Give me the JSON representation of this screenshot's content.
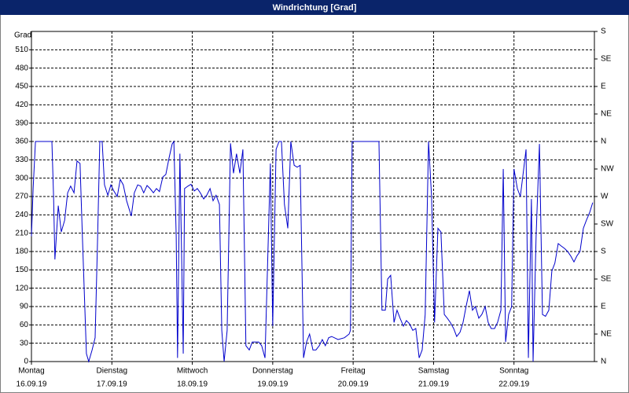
{
  "chart_data": {
    "type": "line",
    "title": "Windrichtung [Grad]",
    "ylabel": "Grad",
    "xlim": [
      0,
      168
    ],
    "xticks": [
      {
        "value": 0,
        "label": "Montag"
      },
      {
        "value": 24,
        "label": "Dienstag"
      },
      {
        "value": 48,
        "label": "Mittwoch"
      },
      {
        "value": 72,
        "label": "Donnerstag"
      },
      {
        "value": 96,
        "label": "Freitag"
      },
      {
        "value": 120,
        "label": "Samstag"
      },
      {
        "value": 144,
        "label": "Sonntag"
      }
    ],
    "xtick_dates": [
      "16.09.19",
      "17.09.19",
      "18.09.19",
      "19.09.19",
      "20.09.19",
      "21.09.19",
      "22.09.19"
    ],
    "ylim": [
      0,
      540
    ],
    "yticks": [
      0,
      30,
      60,
      90,
      120,
      150,
      180,
      210,
      240,
      270,
      300,
      330,
      360,
      390,
      420,
      450,
      480,
      510
    ],
    "y2lim": [
      0,
      540
    ],
    "y2ticks": [
      {
        "value": 0,
        "label": "N"
      },
      {
        "value": 45,
        "label": "NE"
      },
      {
        "value": 90,
        "label": "E"
      },
      {
        "value": 135,
        "label": "SE"
      },
      {
        "value": 180,
        "label": "S"
      },
      {
        "value": 225,
        "label": "SW"
      },
      {
        "value": 270,
        "label": "W"
      },
      {
        "value": 315,
        "label": "NW"
      },
      {
        "value": 360,
        "label": "N"
      },
      {
        "value": 405,
        "label": "NE"
      },
      {
        "value": 450,
        "label": "E"
      },
      {
        "value": 495,
        "label": "SE"
      },
      {
        "value": 540,
        "label": "S"
      }
    ],
    "grid": true,
    "x": [
      0,
      0.5,
      1.2,
      6.1,
      6.6,
      7.0,
      8.0,
      8.9,
      9.9,
      10.8,
      11.7,
      12.7,
      13.6,
      14.5,
      15.2,
      16.4,
      17.1,
      18.1,
      19.0,
      19.7,
      20.4,
      21.1,
      21.8,
      22.8,
      23.7,
      24.6,
      25.6,
      26.5,
      27.4,
      28.4,
      29.8,
      30.7,
      31.7,
      32.6,
      33.5,
      34.5,
      35.4,
      36.4,
      37.3,
      38.2,
      39.2,
      40.1,
      41.1,
      42.0,
      42.5,
      43.2,
      43.6,
      44.3,
      45.3,
      45.7,
      46.7,
      47.6,
      48.6,
      49.5,
      50.4,
      51.4,
      52.3,
      53.3,
      54.2,
      55.1,
      56.1,
      56.8,
      57.5,
      58.4,
      59.4,
      60.3,
      61.2,
      62.2,
      63.1,
      64.0,
      65.0,
      65.9,
      67.8,
      68.7,
      69.7,
      71.3,
      72.0,
      73.0,
      73.9,
      74.6,
      75.5,
      76.5,
      77.4,
      78.4,
      79.3,
      80.2,
      81.2,
      82.1,
      83.0,
      84.0,
      84.9,
      85.9,
      86.8,
      87.7,
      88.7,
      89.6,
      91.5,
      93.4,
      94.8,
      95.2,
      95.7,
      103.7,
      104.6,
      105.6,
      106.3,
      107.2,
      108.2,
      109.1,
      110.0,
      111.0,
      111.9,
      112.8,
      113.8,
      114.7,
      115.7,
      116.6,
      117.5,
      118.5,
      119.4,
      120.3,
      121.3,
      122.2,
      123.2,
      124.1,
      125.0,
      126.0,
      126.9,
      127.9,
      128.8,
      129.7,
      130.7,
      131.6,
      132.5,
      133.5,
      134.4,
      135.4,
      136.3,
      137.2,
      138.2,
      139.1,
      140.1,
      140.8,
      141.5,
      142.4,
      143.3,
      144.0,
      145.0,
      145.9,
      146.9,
      147.6,
      148.3,
      149.2,
      149.7,
      150.6,
      151.6,
      152.5,
      153.4,
      154.4,
      155.3,
      156.2,
      157.2,
      158.1,
      159.1,
      160.0,
      160.9,
      161.9,
      162.8,
      163.7,
      164.7,
      165.6,
      166.6,
      167.5
    ],
    "series": [
      {
        "color": "#0000cc",
        "values": [
          205,
          283,
          360,
          360,
          270,
          167,
          255,
          212,
          231,
          276,
          287,
          276,
          328,
          324,
          205,
          13,
          0,
          19,
          39,
          193,
          360,
          360,
          289,
          272,
          289,
          279,
          270,
          298,
          289,
          263,
          238,
          276,
          289,
          287,
          276,
          288,
          283,
          276,
          283,
          278,
          302,
          306,
          334,
          356,
          360,
          205,
          6,
          340,
          13,
          283,
          287,
          290,
          279,
          283,
          276,
          266,
          272,
          283,
          263,
          272,
          257,
          51,
          0,
          51,
          357,
          308,
          340,
          308,
          347,
          26,
          19,
          32,
          32,
          26,
          6,
          324,
          58,
          347,
          360,
          360,
          257,
          218,
          360,
          321,
          318,
          321,
          6,
          32,
          45,
          19,
          19,
          26,
          36,
          26,
          39,
          41,
          36,
          39,
          45,
          51,
          360,
          360,
          84,
          84,
          135,
          141,
          64,
          84,
          71,
          58,
          67,
          62,
          51,
          54,
          6,
          19,
          77,
          360,
          270,
          64,
          218,
          212,
          77,
          71,
          64,
          54,
          41,
          48,
          64,
          90,
          116,
          84,
          90,
          71,
          77,
          90,
          64,
          54,
          54,
          64,
          84,
          315,
          32,
          77,
          90,
          315,
          283,
          270,
          315,
          347,
          6,
          266,
          0,
          205,
          356,
          77,
          74,
          84,
          148,
          161,
          193,
          189,
          185,
          180,
          173,
          163,
          173,
          180,
          218,
          231,
          244,
          260
        ]
      }
    ]
  }
}
